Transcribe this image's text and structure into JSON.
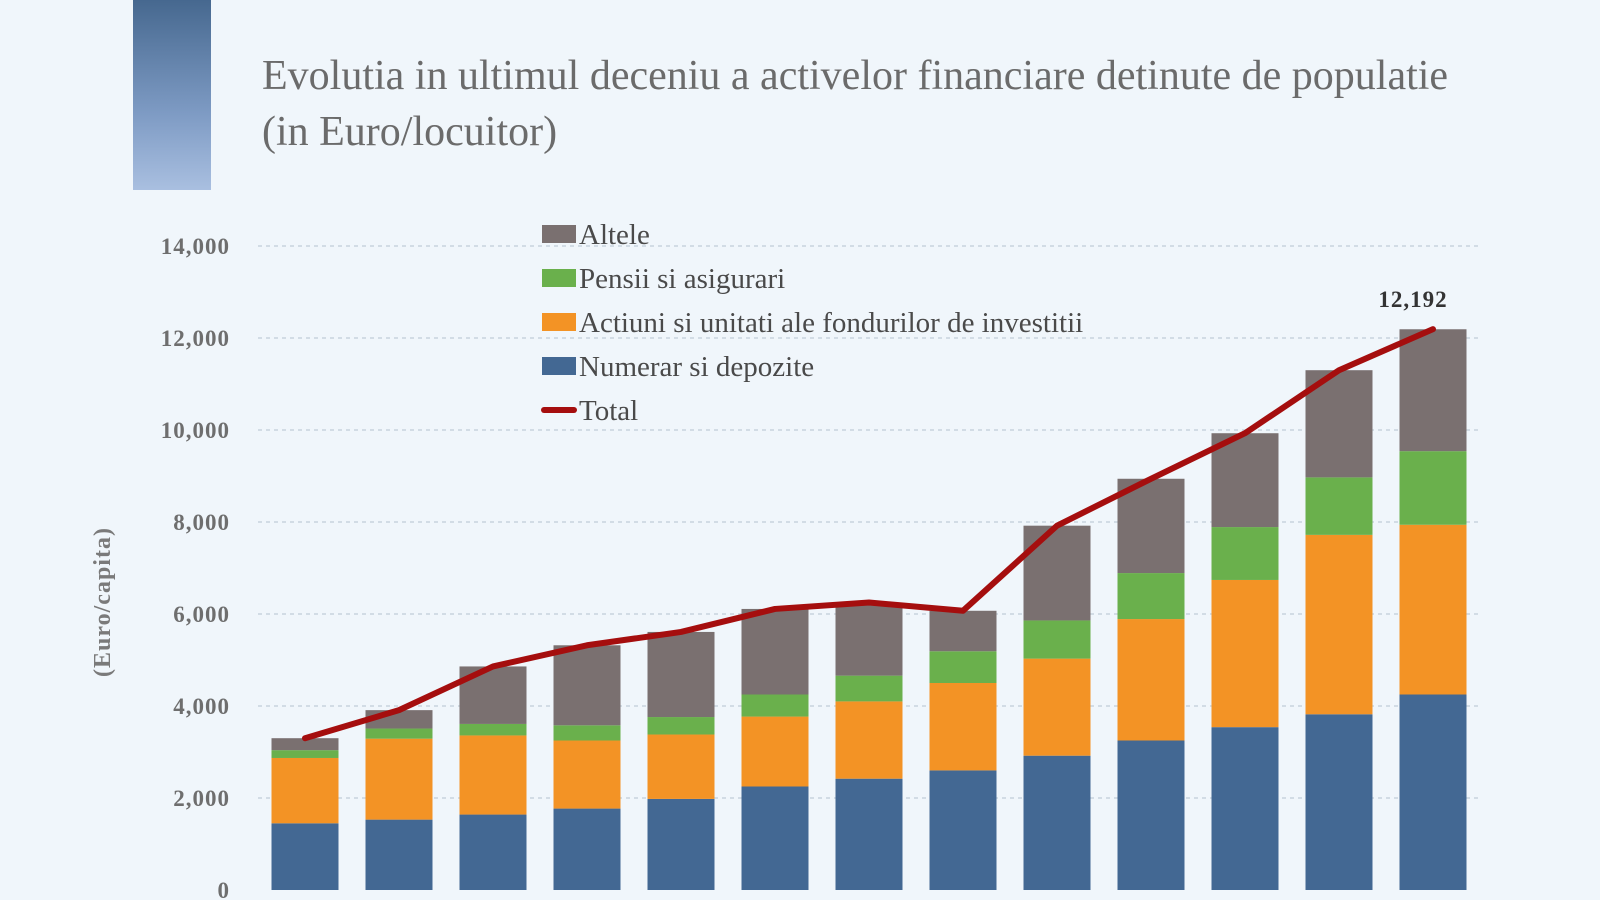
{
  "title": "Evolutia in ultimul deceniu a activelor financiare detinute de populatie (in Euro/locuitor)",
  "colors": {
    "numerar": "#436893",
    "actiuni": "#f39325",
    "pensii": "#6ab04c",
    "altele": "#7a7070",
    "total": "#a50e0e",
    "grid": "#c7d3de",
    "accent": "#46688f"
  },
  "chart_data": {
    "type": "bar",
    "stacked": true,
    "title": "Evolutia in ultimul deceniu a activelor financiare detinute de populatie (in Euro/locuitor)",
    "xlabel": "",
    "ylabel": "(Euro/capita)",
    "ylim": [
      0,
      14000
    ],
    "yticks": [
      0,
      2000,
      4000,
      6000,
      8000,
      10000,
      12000,
      14000
    ],
    "ytick_labels": [
      "0",
      "2,000",
      "4,000",
      "6,000",
      "8,000",
      "10,000",
      "12,000",
      "14,000"
    ],
    "grid": true,
    "legend_position": "top-left",
    "series": [
      {
        "name": "Numerar si depozite",
        "key": "numerar",
        "values": [
          1450,
          1530,
          1640,
          1770,
          1980,
          2250,
          2420,
          2600,
          2920,
          3250,
          3540,
          3820,
          4250
        ]
      },
      {
        "name": "Actiuni si unitati ale fondurilor de investitii",
        "key": "actiuni",
        "values": [
          1420,
          1760,
          1720,
          1480,
          1400,
          1520,
          1680,
          1900,
          2110,
          2640,
          3200,
          3900,
          3690
        ]
      },
      {
        "name": "Pensii si asigurari",
        "key": "pensii",
        "values": [
          170,
          220,
          250,
          330,
          380,
          480,
          560,
          690,
          830,
          1000,
          1150,
          1250,
          1600
        ]
      },
      {
        "name": "Altele",
        "key": "altele",
        "values": [
          260,
          400,
          1250,
          1740,
          1850,
          1860,
          1590,
          880,
          2060,
          2050,
          2040,
          2330,
          2650
        ]
      }
    ],
    "total": {
      "name": "Total",
      "values": [
        3300,
        3910,
        4860,
        5320,
        5610,
        6110,
        6250,
        6070,
        7920,
        8940,
        9930,
        11300,
        12192
      ]
    },
    "data_labels": [
      {
        "index": 12,
        "text": "12,192"
      }
    ],
    "legend_order": [
      "Altele",
      "Pensii si asigurari",
      "Actiuni si unitati ale fondurilor de investitii",
      "Numerar si depozite",
      "Total"
    ]
  }
}
